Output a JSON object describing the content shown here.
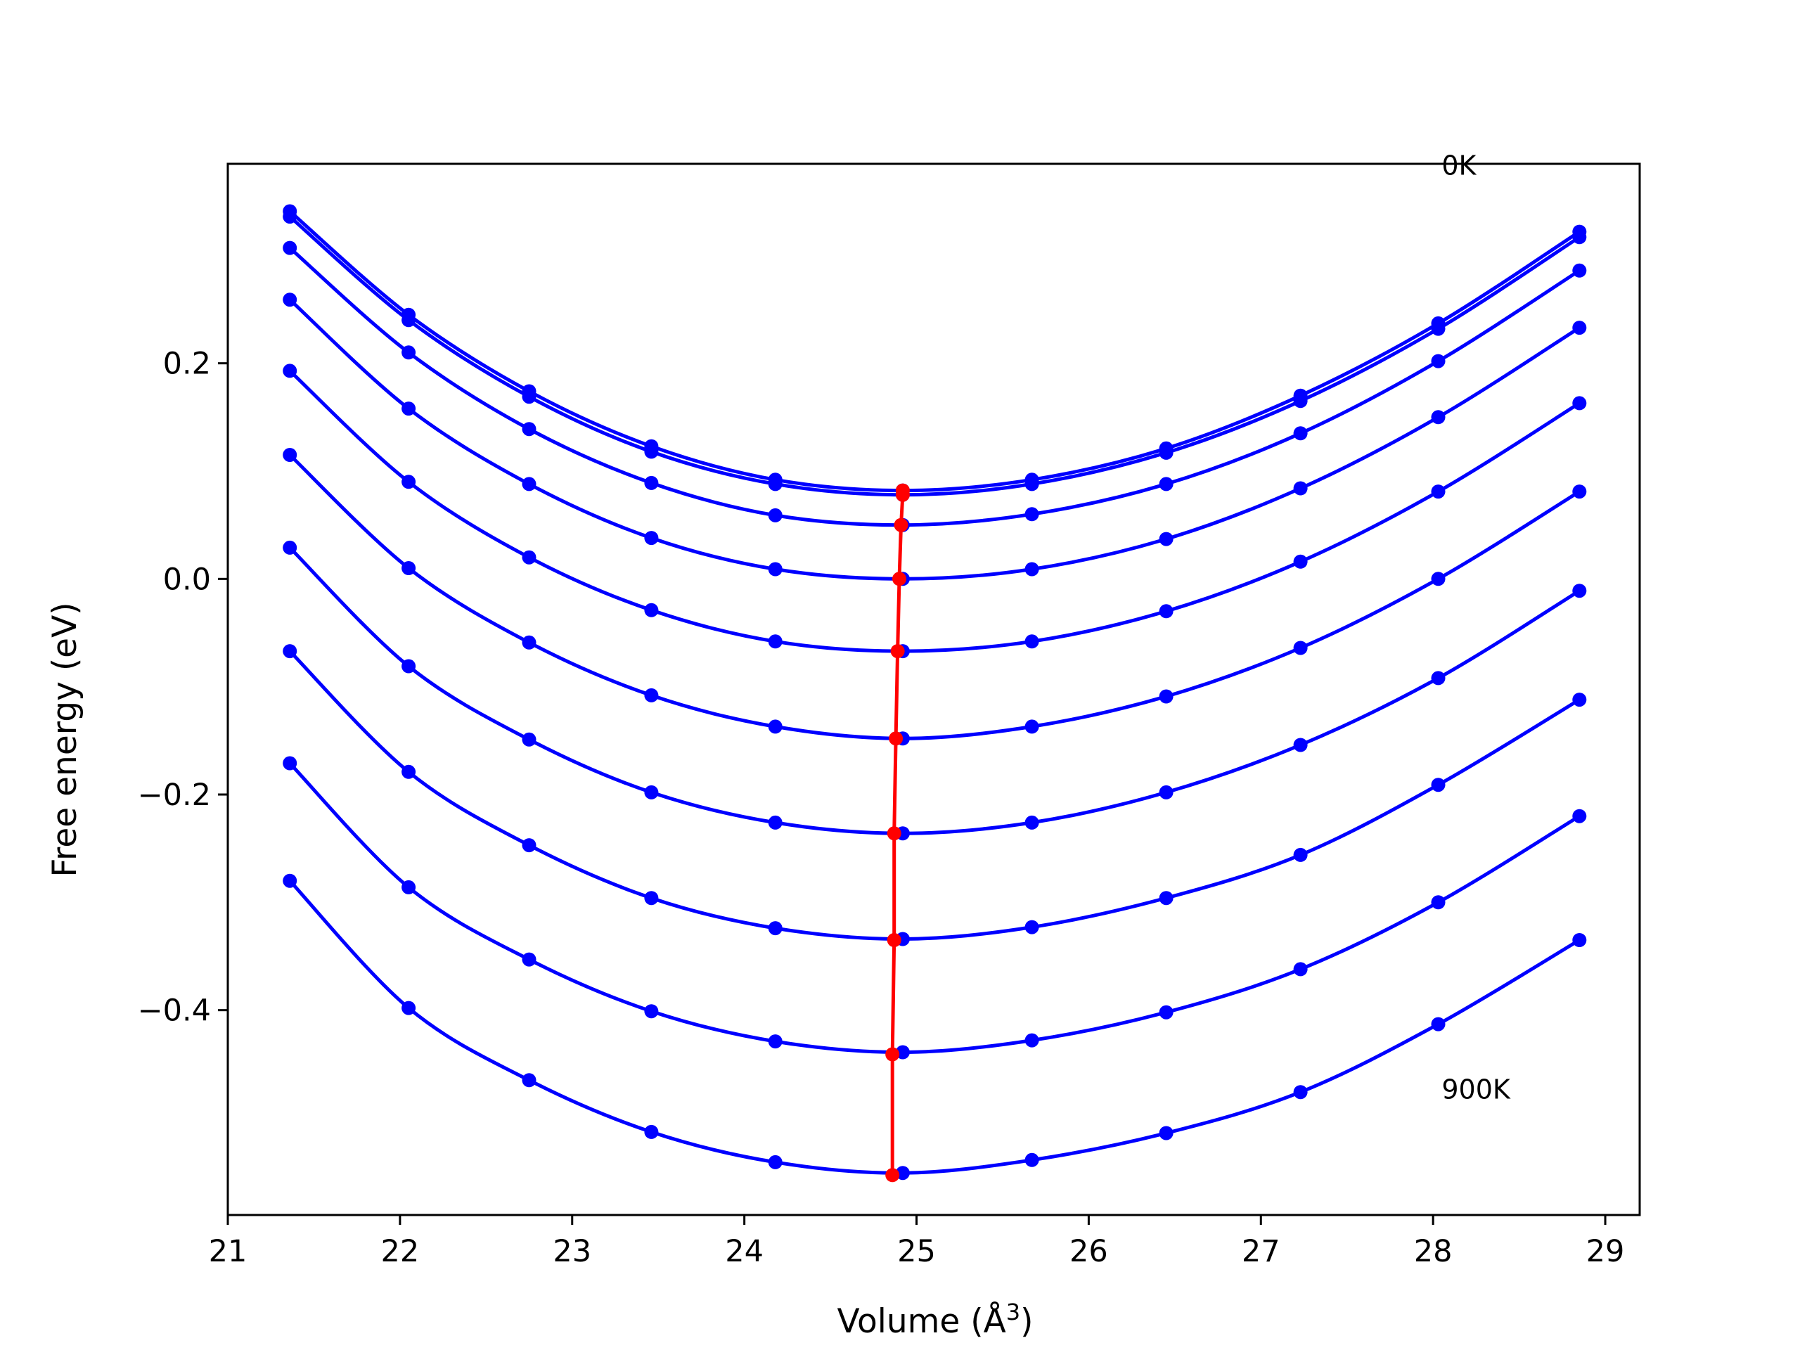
{
  "chart_data": {
    "type": "line",
    "xlabel": "Volume (Å",
    "xlabel_sup": "3",
    "xlabel_close": ")",
    "ylabel": "Free energy (eV)",
    "xlim": [
      21.0,
      29.2
    ],
    "ylim": [
      -0.59,
      0.385
    ],
    "xticks": [
      21,
      22,
      23,
      24,
      25,
      26,
      27,
      28,
      29
    ],
    "xtick_labels": [
      "21",
      "22",
      "23",
      "24",
      "25",
      "26",
      "27",
      "28",
      "29"
    ],
    "yticks": [
      0.2,
      0.0,
      -0.2,
      -0.4
    ],
    "ytick_labels": [
      "0.2",
      "0.0",
      "−0.2",
      "−0.4"
    ],
    "grid": false,
    "colors": {
      "fit": "#0000ff",
      "points": "#0000ff",
      "minimum": "#ff0000"
    },
    "annotations": [
      {
        "text": "0K",
        "x": 28.05,
        "y": 0.375
      },
      {
        "text": "900K",
        "x": 28.05,
        "y": -0.482
      }
    ],
    "x": [
      21.36,
      22.05,
      22.75,
      23.46,
      24.18,
      24.92,
      25.67,
      26.45,
      27.23,
      28.03,
      28.85
    ],
    "series": [
      {
        "values": [
          0.341,
          0.245,
          0.174,
          0.123,
          0.092,
          0.082,
          0.092,
          0.121,
          0.17,
          0.237,
          0.322
        ],
        "fit": [
          0.341,
          0.245,
          0.174,
          0.123,
          0.092,
          0.082,
          0.092,
          0.121,
          0.17,
          0.237,
          0.322
        ],
        "minimum": [
          24.92,
          0.082
        ]
      },
      {
        "values": [
          0.336,
          0.24,
          0.169,
          0.118,
          0.088,
          0.078,
          0.088,
          0.117,
          0.165,
          0.232,
          0.317
        ],
        "fit": [
          0.336,
          0.24,
          0.169,
          0.118,
          0.088,
          0.078,
          0.088,
          0.117,
          0.165,
          0.232,
          0.317
        ],
        "minimum": [
          24.92,
          0.078
        ]
      },
      {
        "values": [
          0.307,
          0.21,
          0.139,
          0.089,
          0.059,
          0.05,
          0.06,
          0.088,
          0.135,
          0.202,
          0.286
        ],
        "fit": [
          0.307,
          0.21,
          0.139,
          0.089,
          0.059,
          0.05,
          0.06,
          0.088,
          0.135,
          0.202,
          0.286
        ],
        "minimum": [
          24.91,
          0.05
        ]
      },
      {
        "values": [
          0.259,
          0.158,
          0.088,
          0.038,
          0.009,
          0.0,
          0.009,
          0.037,
          0.084,
          0.15,
          0.233
        ],
        "fit": [
          0.259,
          0.158,
          0.088,
          0.038,
          0.009,
          0.0,
          0.009,
          0.037,
          0.084,
          0.15,
          0.233
        ],
        "minimum": [
          24.9,
          0.0
        ]
      },
      {
        "values": [
          0.193,
          0.09,
          0.02,
          -0.029,
          -0.058,
          -0.067,
          -0.058,
          -0.03,
          0.016,
          0.081,
          0.163
        ],
        "fit": [
          0.193,
          0.09,
          0.02,
          -0.029,
          -0.058,
          -0.067,
          -0.058,
          -0.03,
          0.016,
          0.081,
          0.163
        ],
        "minimum": [
          24.89,
          -0.067
        ]
      },
      {
        "values": [
          0.115,
          0.01,
          -0.059,
          -0.108,
          -0.137,
          -0.148,
          -0.137,
          -0.109,
          -0.064,
          0.0,
          0.081
        ],
        "fit": [
          0.115,
          0.01,
          -0.059,
          -0.108,
          -0.137,
          -0.148,
          -0.137,
          -0.109,
          -0.064,
          0.0,
          0.081
        ],
        "minimum": [
          24.88,
          -0.148
        ]
      },
      {
        "values": [
          0.029,
          -0.081,
          -0.149,
          -0.198,
          -0.226,
          -0.236,
          -0.226,
          -0.198,
          -0.154,
          -0.092,
          -0.011
        ],
        "fit": [
          0.029,
          -0.081,
          -0.149,
          -0.198,
          -0.226,
          -0.236,
          -0.226,
          -0.198,
          -0.154,
          -0.092,
          -0.011
        ],
        "minimum": [
          24.87,
          -0.236
        ]
      },
      {
        "values": [
          -0.067,
          -0.179,
          -0.247,
          -0.296,
          -0.324,
          -0.334,
          -0.323,
          -0.296,
          -0.256,
          -0.191,
          -0.112
        ],
        "fit": [
          -0.067,
          -0.179,
          -0.247,
          -0.296,
          -0.324,
          -0.334,
          -0.323,
          -0.296,
          -0.256,
          -0.191,
          -0.112
        ],
        "minimum": [
          24.87,
          -0.335
        ]
      },
      {
        "values": [
          -0.171,
          -0.286,
          -0.353,
          -0.401,
          -0.429,
          -0.439,
          -0.428,
          -0.402,
          -0.362,
          -0.3,
          -0.22
        ],
        "fit": [
          -0.171,
          -0.286,
          -0.353,
          -0.401,
          -0.429,
          -0.439,
          -0.428,
          -0.402,
          -0.362,
          -0.3,
          -0.22
        ],
        "minimum": [
          24.86,
          -0.441
        ]
      },
      {
        "values": [
          -0.28,
          -0.398,
          -0.465,
          -0.513,
          -0.541,
          -0.551,
          -0.539,
          -0.514,
          -0.476,
          -0.413,
          -0.335
        ],
        "fit": [
          -0.28,
          -0.398,
          -0.465,
          -0.513,
          -0.541,
          -0.551,
          -0.539,
          -0.514,
          -0.476,
          -0.413,
          -0.335
        ],
        "minimum": [
          24.86,
          -0.553
        ]
      }
    ]
  }
}
